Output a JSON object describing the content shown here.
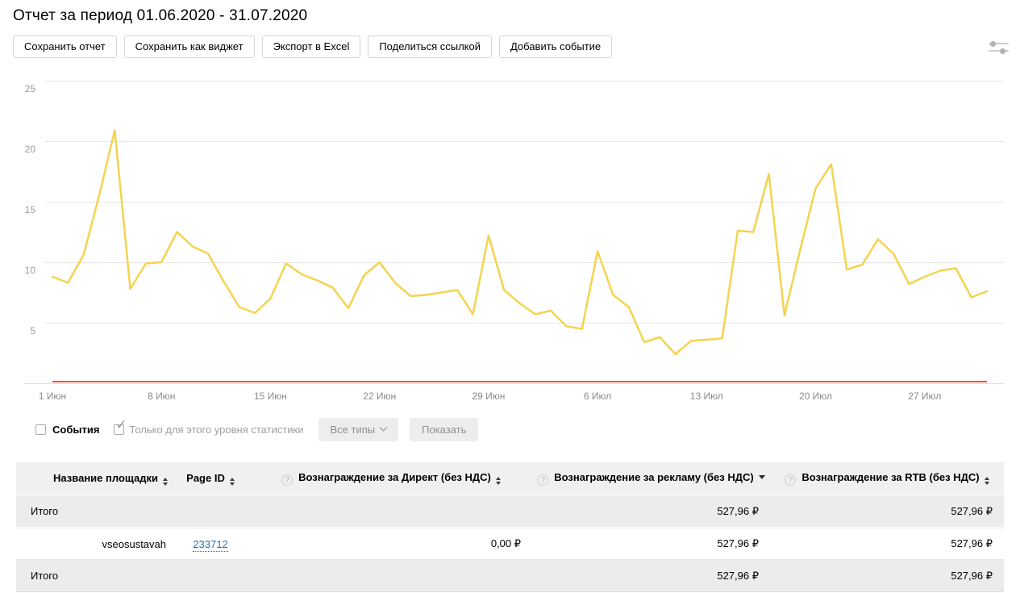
{
  "header": {
    "title": "Отчет за период 01.06.2020 - 31.07.2020"
  },
  "toolbar": {
    "buttons": [
      "Сохранить отчет",
      "Сохранить как виджет",
      "Экспорт в Excel",
      "Поделиться ссылкой",
      "Добавить событие"
    ],
    "settings_icon": "sliders-icon"
  },
  "controls": {
    "events_label": "События",
    "events_checked": false,
    "level_only_label": "Только для этого уровня статистики",
    "level_only_checked": true,
    "types_dropdown_label": "Все типы",
    "show_label": "Показать"
  },
  "chart_data": {
    "type": "line",
    "title": "",
    "xlabel": "",
    "ylabel": "",
    "ylim": [
      0,
      25
    ],
    "yticks": [
      5,
      10,
      15,
      20,
      25
    ],
    "grid": true,
    "legend": "none",
    "categories": [
      "01.06",
      "02.06",
      "03.06",
      "04.06",
      "05.06",
      "06.06",
      "07.06",
      "08.06",
      "09.06",
      "10.06",
      "11.06",
      "12.06",
      "13.06",
      "14.06",
      "15.06",
      "16.06",
      "17.06",
      "18.06",
      "19.06",
      "20.06",
      "21.06",
      "22.06",
      "23.06",
      "24.06",
      "25.06",
      "26.06",
      "27.06",
      "28.06",
      "29.06",
      "30.06",
      "01.07",
      "02.07",
      "03.07",
      "04.07",
      "05.07",
      "06.07",
      "07.07",
      "08.07",
      "09.07",
      "10.07",
      "11.07",
      "12.07",
      "13.07",
      "14.07",
      "15.07",
      "16.07",
      "17.07",
      "18.07",
      "19.07",
      "20.07",
      "21.07",
      "22.07",
      "23.07",
      "24.07",
      "25.07",
      "26.07",
      "27.07",
      "28.07",
      "29.07",
      "30.07",
      "31.07"
    ],
    "x_ticks": [
      {
        "day": 0,
        "label": "1 Июн"
      },
      {
        "day": 7,
        "label": "8 Июн"
      },
      {
        "day": 14,
        "label": "15 Июн"
      },
      {
        "day": 21,
        "label": "22 Июн"
      },
      {
        "day": 28,
        "label": "29 Июн"
      },
      {
        "day": 35,
        "label": "6 Июл"
      },
      {
        "day": 42,
        "label": "13 Июл"
      },
      {
        "day": 49,
        "label": "20 Июл"
      },
      {
        "day": 56,
        "label": "27 Июл"
      }
    ],
    "series": [
      {
        "name": "line-yellow",
        "color": "#f5d34f",
        "values": [
          8.8,
          8.3,
          10.6,
          15.5,
          20.9,
          7.8,
          9.9,
          10,
          12.5,
          11.3,
          10.7,
          8.4,
          6.3,
          5.8,
          7,
          9.9,
          9,
          8.5,
          7.9,
          6.2,
          8.9,
          10,
          8.3,
          7.2,
          7.3,
          7.5,
          7.7,
          5.7,
          12.2,
          7.7,
          6.6,
          5.7,
          6,
          4.7,
          4.5,
          10.9,
          7.3,
          6.3,
          3.4,
          3.8,
          2.4,
          3.5,
          3.6,
          3.7,
          12.6,
          12.5,
          17.3,
          5.6,
          11,
          16.1,
          18.1,
          9.4,
          9.8,
          11.9,
          10.7,
          8.2,
          8.8,
          9.3,
          9.5,
          7.1,
          7.6
        ]
      },
      {
        "name": "line-red",
        "color": "#ed5334",
        "values_constant": 0,
        "points": 61
      }
    ]
  },
  "table": {
    "columns": [
      {
        "label": "Название площадки",
        "sort": "both",
        "help": false
      },
      {
        "label": "Page ID",
        "sort": "both",
        "help": false
      },
      {
        "label": "Вознаграждение за Директ (без НДС)",
        "sort": "both",
        "help": true
      },
      {
        "label": "Вознаграждение за рекламу (без НДС)",
        "sort": "desc",
        "help": true
      },
      {
        "label": "Вознаграждение за RTB (без НДС)",
        "sort": "both",
        "help": true
      }
    ],
    "rows": [
      {
        "type": "total",
        "name": "Итого",
        "page_id": "",
        "direct": "",
        "ads": "527,96 ₽",
        "rtb": "527,96 ₽"
      },
      {
        "type": "data",
        "name": "vseosustavah",
        "page_id": "233712",
        "direct": "0,00 ₽",
        "ads": "527,96 ₽",
        "rtb": "527,96 ₽"
      },
      {
        "type": "total",
        "name": "Итого",
        "page_id": "",
        "direct": "",
        "ads": "527,96 ₽",
        "rtb": "527,96 ₽"
      }
    ]
  }
}
